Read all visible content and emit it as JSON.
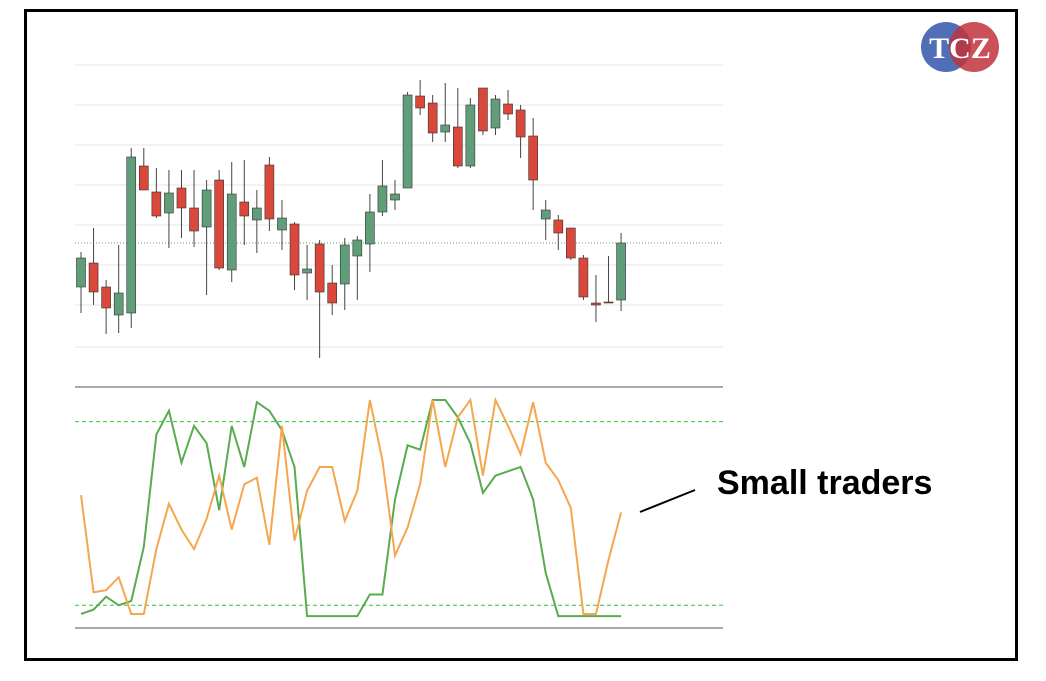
{
  "logo": "TCZ",
  "chart_data": [
    {
      "type": "candlestick",
      "up_color": "#5f9e78",
      "down_color": "#d9483b",
      "open": [
        93,
        117,
        93,
        65,
        67,
        214,
        188,
        167,
        192,
        172,
        153,
        200,
        110,
        178,
        160,
        215,
        150,
        156,
        107,
        136,
        97,
        96,
        124,
        136,
        168,
        180,
        192,
        284,
        277,
        248,
        253,
        214,
        292,
        252,
        276,
        270,
        244,
        161,
        160,
        152,
        122,
        77,
        78,
        80
      ],
      "high": [
        128,
        152,
        100,
        135,
        232,
        232,
        212,
        210,
        210,
        210,
        200,
        210,
        218,
        220,
        190,
        223,
        180,
        158,
        135,
        140,
        115,
        142,
        144,
        186,
        220,
        200,
        288,
        300,
        285,
        297,
        292,
        282,
        292,
        285,
        290,
        275,
        262,
        180,
        165,
        152,
        125,
        105,
        124,
        147
      ],
      "low": [
        67,
        75,
        46,
        47,
        52,
        190,
        162,
        132,
        142,
        133,
        85,
        110,
        98,
        135,
        127,
        149,
        130,
        90,
        80,
        22,
        65,
        70,
        80,
        108,
        164,
        170,
        192,
        265,
        238,
        238,
        212,
        212,
        245,
        245,
        260,
        222,
        170,
        140,
        130,
        120,
        80,
        58,
        77,
        69
      ],
      "close": [
        122,
        88,
        72,
        87,
        223,
        190,
        164,
        187,
        172,
        149,
        190,
        112,
        186,
        164,
        172,
        161,
        162,
        105,
        111,
        88,
        77,
        135,
        140,
        168,
        194,
        186,
        285,
        272,
        247,
        255,
        214,
        275,
        249,
        281,
        266,
        243,
        200,
        170,
        147,
        122,
        83,
        75,
        77,
        137
      ],
      "ylim": [
        -7,
        340
      ],
      "yticks": [
        33,
        75,
        115,
        155,
        195,
        235,
        275,
        315
      ],
      "grid": true
    },
    {
      "type": "line",
      "series": [
        {
          "color": "#5aab4f",
          "values": [
            1,
            3,
            9,
            5,
            7,
            32,
            84,
            95,
            71,
            88,
            80,
            49,
            88,
            69,
            99,
            95,
            86,
            69,
            0,
            0,
            0,
            0,
            0,
            10,
            10,
            54,
            79,
            77,
            100,
            100,
            92,
            80,
            57,
            65,
            67,
            69,
            54,
            20,
            0,
            0,
            0,
            0,
            0,
            0
          ]
        },
        {
          "color": "#f5a64f",
          "values": [
            56,
            11,
            12,
            18,
            1,
            1,
            31,
            52,
            40,
            31,
            45,
            65,
            40,
            61,
            64,
            33,
            88,
            35,
            58,
            69,
            69,
            44,
            58,
            100,
            72,
            28,
            41,
            61,
            100,
            69,
            92,
            100,
            65,
            100,
            88,
            75,
            99,
            71,
            63,
            50,
            1,
            1,
            26,
            48
          ]
        }
      ],
      "ylim": [
        -5.5,
        106
      ],
      "levels": [
        90,
        5
      ],
      "annotation": "Small traders"
    }
  ]
}
